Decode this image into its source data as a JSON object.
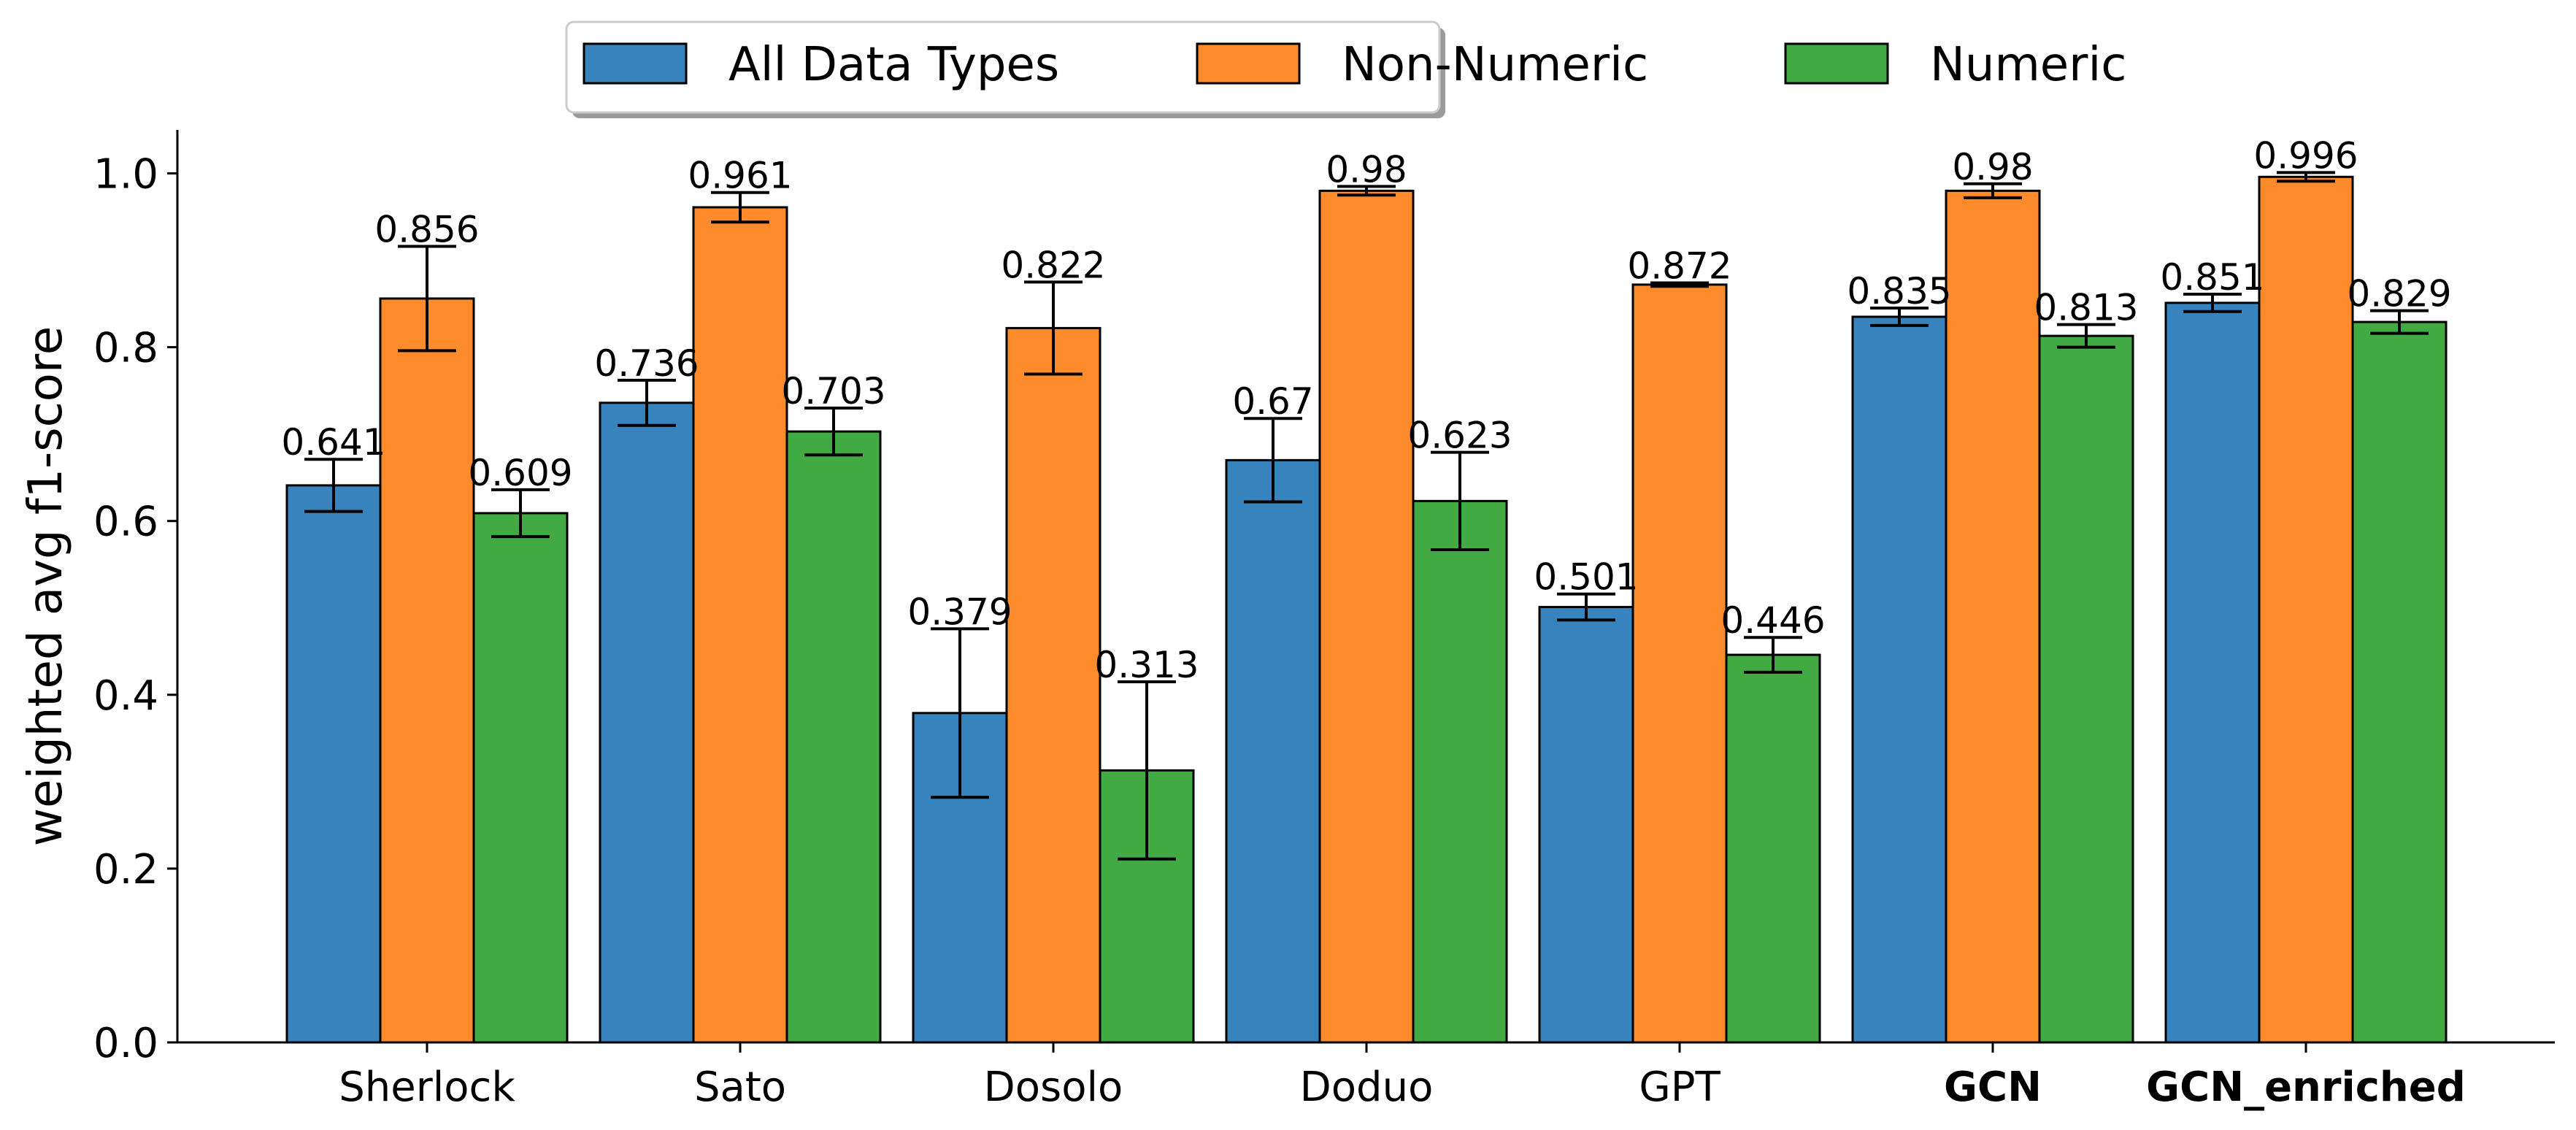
{
  "chart_data": {
    "type": "bar",
    "title": "",
    "xlabel": "",
    "ylabel": "weighted avg f1-score",
    "ylim": [
      0,
      1.05
    ],
    "yticks": [
      0.0,
      0.2,
      0.4,
      0.6,
      0.8,
      1.0
    ],
    "ytick_labels": [
      "0.0",
      "0.2",
      "0.4",
      "0.6",
      "0.8",
      "1.0"
    ],
    "categories": [
      "Sherlock",
      "Sato",
      "Dosolo",
      "Doduo",
      "GPT",
      "GCN",
      "GCN_enriched"
    ],
    "bold_categories": [
      "GCN",
      "GCN_enriched"
    ],
    "legend_position": "top-center",
    "grid": false,
    "series": [
      {
        "name": "All Data Types",
        "color": "#3783bd",
        "values": [
          0.641,
          0.736,
          0.379,
          0.67,
          0.501,
          0.835,
          0.851
        ],
        "labels": [
          "0.641",
          "0.736",
          "0.379",
          "0.67",
          "0.501",
          "0.835",
          "0.851"
        ],
        "errors": [
          0.03,
          0.026,
          0.097,
          0.048,
          0.015,
          0.01,
          0.01
        ]
      },
      {
        "name": "Non-Numeric",
        "color": "#fd8b2c",
        "values": [
          0.856,
          0.961,
          0.822,
          0.98,
          0.872,
          0.98,
          0.996
        ],
        "labels": [
          "0.856",
          "0.961",
          "0.822",
          "0.98",
          "0.872",
          "0.98",
          "0.996"
        ],
        "errors": [
          0.06,
          0.017,
          0.053,
          0.005,
          0.002,
          0.008,
          0.005
        ]
      },
      {
        "name": "Numeric",
        "color": "#41aa43",
        "values": [
          0.609,
          0.703,
          0.313,
          0.623,
          0.446,
          0.813,
          0.829
        ],
        "labels": [
          "0.609",
          "0.703",
          "0.313",
          "0.623",
          "0.446",
          "0.813",
          "0.829"
        ],
        "errors": [
          0.027,
          0.027,
          0.102,
          0.056,
          0.02,
          0.013,
          0.013
        ]
      }
    ]
  }
}
